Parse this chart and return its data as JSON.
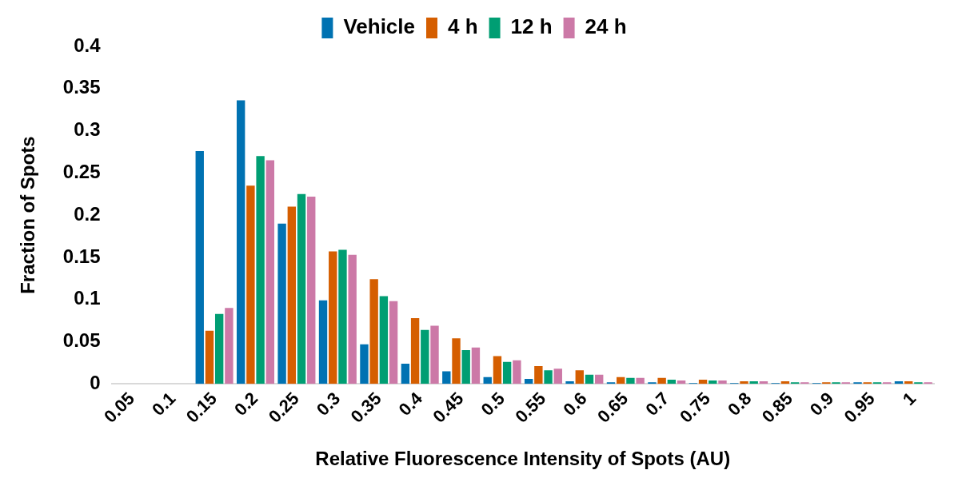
{
  "chart_data": {
    "type": "bar",
    "xlabel": "Relative Fluorescence Intensity of Spots (AU)",
    "ylabel": "Fraction of Spots",
    "categories": [
      "0.05",
      "0.1",
      "0.15",
      "0.2",
      "0.25",
      "0.3",
      "0.35",
      "0.4",
      "0.45",
      "0.5",
      "0.55",
      "0.6",
      "0.65",
      "0.7",
      "0.75",
      "0.8",
      "0.85",
      "0.9",
      "0.95",
      "1"
    ],
    "series": [
      {
        "name": "Vehicle",
        "color": "#0072b2",
        "values": [
          0,
          0,
          0.276,
          0.336,
          0.19,
          0.099,
          0.047,
          0.024,
          0.015,
          0.008,
          0.006,
          0.003,
          0.002,
          0.002,
          0.001,
          0.001,
          0.001,
          0.001,
          0.002,
          0.003
        ]
      },
      {
        "name": "4 h",
        "color": "#d55e00",
        "values": [
          0,
          0,
          0.063,
          0.235,
          0.21,
          0.157,
          0.124,
          0.078,
          0.054,
          0.033,
          0.021,
          0.016,
          0.008,
          0.007,
          0.005,
          0.003,
          0.003,
          0.002,
          0.002,
          0.003
        ]
      },
      {
        "name": "12 h",
        "color": "#009e73",
        "values": [
          0,
          0,
          0.083,
          0.27,
          0.225,
          0.159,
          0.104,
          0.064,
          0.04,
          0.026,
          0.016,
          0.011,
          0.007,
          0.005,
          0.004,
          0.003,
          0.002,
          0.002,
          0.002,
          0.002
        ]
      },
      {
        "name": "24 h",
        "color": "#cc79a7",
        "values": [
          0,
          0,
          0.09,
          0.265,
          0.222,
          0.153,
          0.098,
          0.069,
          0.043,
          0.028,
          0.018,
          0.011,
          0.007,
          0.004,
          0.004,
          0.003,
          0.002,
          0.002,
          0.002,
          0.002
        ]
      }
    ],
    "ylim": [
      0,
      0.4
    ],
    "yticks": [
      0,
      0.05,
      0.1,
      0.15,
      0.2,
      0.25,
      0.3,
      0.35,
      0.4
    ],
    "grid": false,
    "legend": "top"
  }
}
